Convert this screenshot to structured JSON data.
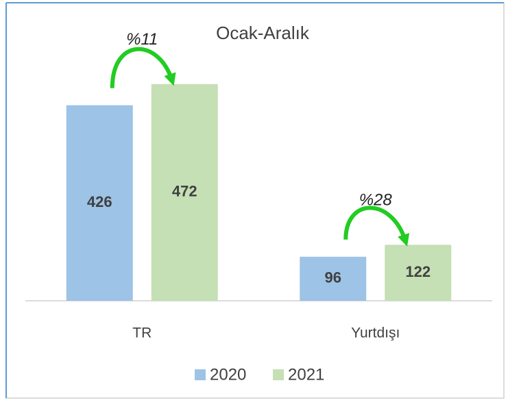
{
  "chart_data": {
    "type": "bar",
    "title": "Ocak-Aralık",
    "categories": [
      "TR",
      "Yurtdışı"
    ],
    "series": [
      {
        "name": "2020",
        "color": "#9dc3e6",
        "values": [
          426,
          96
        ]
      },
      {
        "name": "2021",
        "color": "#c5e0b4",
        "values": [
          472,
          122
        ]
      }
    ],
    "annotations": [
      "%11",
      "%28"
    ],
    "ylim": [
      0,
      500
    ]
  }
}
